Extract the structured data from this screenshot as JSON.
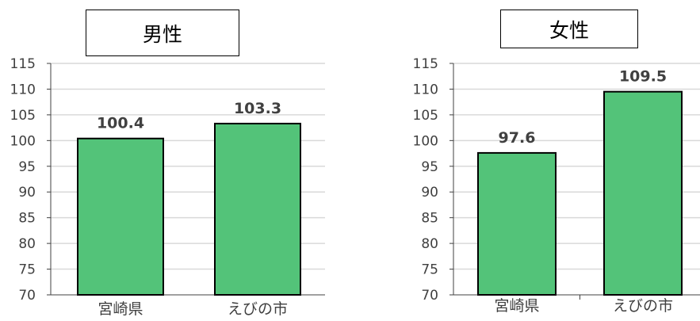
{
  "colors": {
    "bar": "#53c379",
    "bar_stroke": "#000000",
    "grid": "#d9d9d9",
    "axis": "#404040"
  },
  "chart_data": [
    {
      "type": "bar",
      "title": "男性",
      "categories": [
        "宮崎県",
        "えびの市"
      ],
      "values": [
        100.4,
        103.3
      ],
      "data_labels": [
        "100.4",
        "103.3"
      ],
      "ylim": [
        70,
        115
      ],
      "yticks": [
        "70",
        "75",
        "80",
        "85",
        "90",
        "95",
        "100",
        "105",
        "110",
        "115"
      ],
      "grid": true
    },
    {
      "type": "bar",
      "title": "女性",
      "categories": [
        "宮崎県",
        "えびの市"
      ],
      "values": [
        97.6,
        109.5
      ],
      "data_labels": [
        "97.6",
        "109.5"
      ],
      "ylim": [
        70,
        115
      ],
      "yticks": [
        "70",
        "75",
        "80",
        "85",
        "90",
        "95",
        "100",
        "105",
        "110",
        "115"
      ],
      "grid": true
    }
  ]
}
